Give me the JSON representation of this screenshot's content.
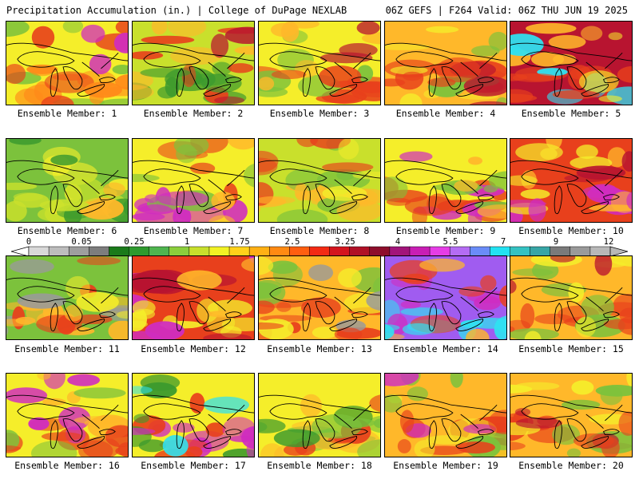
{
  "header": {
    "title": "Precipitation Accumulation (in.) | College of DuPage NEXLAB",
    "run_info": "06Z GEFS | F264 Valid: 06Z THU JUN 19 2025"
  },
  "colorbar": {
    "tick_labels": [
      "0",
      "0.05",
      "0.25",
      "1",
      "1.75",
      "2.5",
      "3.25",
      "4",
      "5.5",
      "7",
      "9",
      "12"
    ],
    "colors": [
      "#d9d9d9",
      "#bdbdbd",
      "#9e9e9e",
      "#7d7d7d",
      "#1a7a1a",
      "#2e9a2e",
      "#4fb54f",
      "#8bcf3c",
      "#c8e02c",
      "#f2f224",
      "#ffd21a",
      "#ffb014",
      "#ff8a12",
      "#ff5e10",
      "#f42a14",
      "#d4141e",
      "#b01026",
      "#8e0e2c",
      "#a2147a",
      "#c81eb4",
      "#e63ce6",
      "#b46cf4",
      "#6a8cf8",
      "#22e2f2",
      "#34c2c2",
      "#37a6a6",
      "#7a7a7a",
      "#9a9a9a",
      "#b8b8b8"
    ]
  },
  "panels": [
    {
      "label": "Ensemble Member: 1"
    },
    {
      "label": "Ensemble Member: 2"
    },
    {
      "label": "Ensemble Member: 3"
    },
    {
      "label": "Ensemble Member: 4"
    },
    {
      "label": "Ensemble Member: 5"
    },
    {
      "label": "Ensemble Member: 6"
    },
    {
      "label": "Ensemble Member: 7"
    },
    {
      "label": "Ensemble Member: 8"
    },
    {
      "label": "Ensemble Member: 9"
    },
    {
      "label": "Ensemble Member: 10"
    },
    {
      "label": "Ensemble Member: 11"
    },
    {
      "label": "Ensemble Member: 12"
    },
    {
      "label": "Ensemble Member: 13"
    },
    {
      "label": "Ensemble Member: 14"
    },
    {
      "label": "Ensemble Member: 15"
    },
    {
      "label": "Ensemble Member: 16"
    },
    {
      "label": "Ensemble Member: 17"
    },
    {
      "label": "Ensemble Member: 18"
    },
    {
      "label": "Ensemble Member: 19"
    },
    {
      "label": "Ensemble Member: 20"
    }
  ],
  "map_colors": {
    "green_dark": "#3c9a2e",
    "green": "#7cc23c",
    "yellow_green": "#c9e02c",
    "yellow": "#f5ee2a",
    "orange": "#ffb82a",
    "dark_orange": "#ff8a1a",
    "red": "#e8401c",
    "dark_red": "#b81430",
    "magenta": "#d02cc0",
    "purple": "#a05cf0",
    "cyan": "#30e0f0",
    "gray": "#9a9a9a"
  }
}
